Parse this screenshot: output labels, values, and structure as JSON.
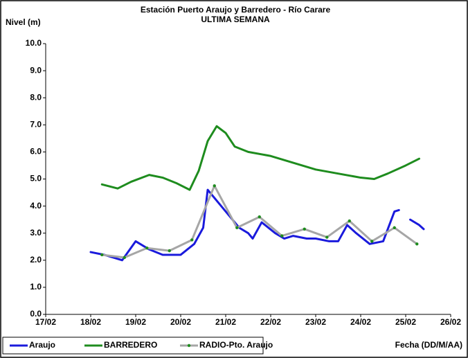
{
  "chart_data": {
    "type": "line",
    "title": "Estación Puerto Araujo y Barredero - Río Carare",
    "subtitle": "ULTIMA SEMANA",
    "y_label": "Nivel (m)",
    "x_label": "Fecha (DD/M/AA)",
    "xlim": [
      17,
      26
    ],
    "xticks": [
      {
        "value": 17,
        "label": "17/02"
      },
      {
        "value": 18,
        "label": "18/02"
      },
      {
        "value": 19,
        "label": "19/02"
      },
      {
        "value": 20,
        "label": "20/02"
      },
      {
        "value": 21,
        "label": "21/02"
      },
      {
        "value": 22,
        "label": "22/02"
      },
      {
        "value": 23,
        "label": "23/02"
      },
      {
        "value": 24,
        "label": "24/02"
      },
      {
        "value": 25,
        "label": "25/02"
      },
      {
        "value": 26,
        "label": "26/02"
      }
    ],
    "ylim": [
      0,
      10
    ],
    "yticks": [
      {
        "value": 0,
        "label": "0.0"
      },
      {
        "value": 1,
        "label": "1.0"
      },
      {
        "value": 2,
        "label": "2.0"
      },
      {
        "value": 3,
        "label": "3.0"
      },
      {
        "value": 4,
        "label": "4.0"
      },
      {
        "value": 5,
        "label": "5.0"
      },
      {
        "value": 6,
        "label": "6.0"
      },
      {
        "value": 7,
        "label": "7.0"
      },
      {
        "value": 8,
        "label": "8.0"
      },
      {
        "value": 9,
        "label": "9.0"
      },
      {
        "value": 10,
        "label": "10.0"
      }
    ],
    "grid": false,
    "legend": "bottom",
    "series": [
      {
        "name": "Araujo",
        "color": "#1a1adc",
        "markers": false,
        "x": [
          18,
          18.3,
          18.7,
          19.0,
          19.3,
          19.6,
          20.0,
          20.3,
          20.5,
          20.6,
          20.9,
          21.3,
          21.5,
          21.6,
          21.8,
          22.1,
          22.3,
          22.5,
          22.8,
          23.0,
          23.3,
          23.5,
          23.7,
          23.9,
          24.2,
          24.5,
          24.75,
          24.85,
          25.0,
          25.1,
          25.3,
          25.4
        ],
        "values": [
          2.3,
          2.2,
          2.0,
          2.7,
          2.4,
          2.2,
          2.2,
          2.6,
          3.2,
          4.6,
          4.0,
          3.2,
          3.0,
          2.8,
          3.4,
          3.0,
          2.8,
          2.9,
          2.8,
          2.8,
          2.7,
          2.7,
          3.3,
          3.0,
          2.6,
          2.7,
          3.8,
          3.85,
          null,
          3.5,
          3.3,
          3.15
        ]
      },
      {
        "name": "BARREDERO",
        "color": "#1e8c1e",
        "markers": false,
        "x": [
          18.25,
          18.6,
          18.9,
          19.3,
          19.6,
          19.9,
          20.2,
          20.4,
          20.6,
          20.8,
          21.0,
          21.2,
          21.5,
          22.0,
          22.5,
          23.0,
          23.5,
          24.0,
          24.3,
          24.6,
          25.0,
          25.3
        ],
        "values": [
          4.8,
          4.65,
          4.9,
          5.15,
          5.05,
          4.85,
          4.6,
          5.3,
          6.4,
          6.95,
          6.7,
          6.2,
          6.0,
          5.85,
          5.6,
          5.35,
          5.2,
          5.05,
          5.0,
          5.2,
          5.5,
          5.75
        ]
      },
      {
        "name": "RADIO-Pto. Araujo",
        "color": "#a6a6a6",
        "markers": true,
        "marker_color": "#1e8c1e",
        "x": [
          18.25,
          18.75,
          19.25,
          19.75,
          20.25,
          20.75,
          21.25,
          21.75,
          22.25,
          22.75,
          23.25,
          23.75,
          24.25,
          24.75,
          25.25
        ],
        "values": [
          2.2,
          2.1,
          2.45,
          2.35,
          2.75,
          4.75,
          3.2,
          3.6,
          2.9,
          3.15,
          2.85,
          3.45,
          2.7,
          3.2,
          2.6
        ]
      }
    ]
  }
}
